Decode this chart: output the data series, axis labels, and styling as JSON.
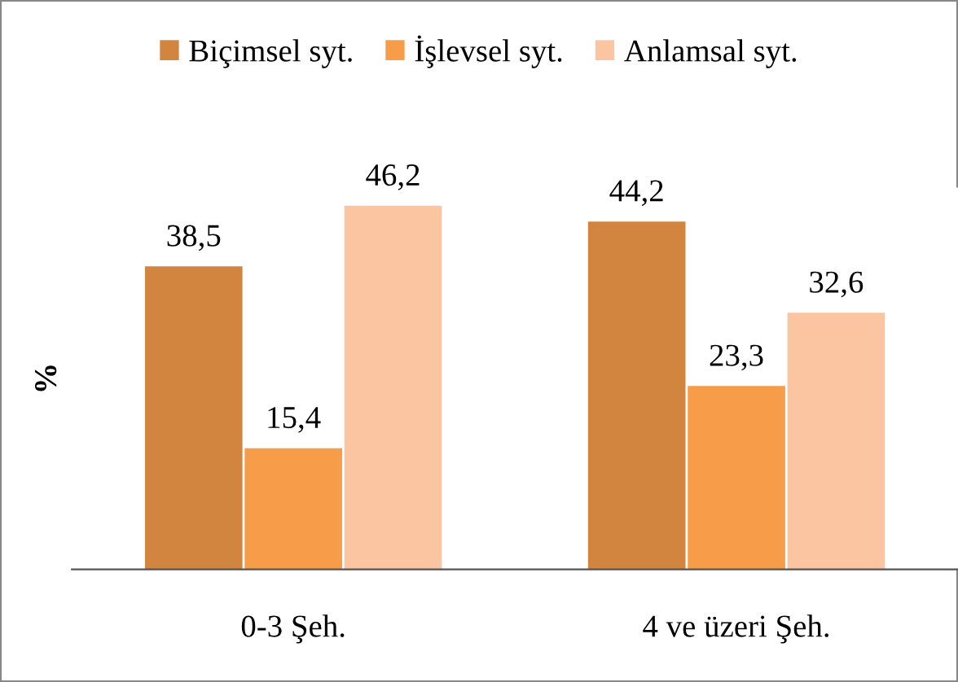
{
  "chart_data": {
    "type": "bar",
    "ylabel": "%",
    "categories": [
      "0-3 Şeh.",
      "4 ve üzeri Şeh."
    ],
    "series": [
      {
        "name": "Biçimsel syt.",
        "color": "#d2853f",
        "values": [
          38.5,
          44.2
        ],
        "value_labels": [
          "38,5",
          "44,2"
        ]
      },
      {
        "name": "İşlevsel syt.",
        "color": "#f79c48",
        "values": [
          15.4,
          23.3
        ],
        "value_labels": [
          "15,4",
          "23,3"
        ]
      },
      {
        "name": "Anlamsal syt.",
        "color": "#fbc5a2",
        "values": [
          46.2,
          32.6
        ],
        "value_labels": [
          "46,2",
          "32,6"
        ]
      }
    ],
    "legend": "top",
    "grid": false
  }
}
